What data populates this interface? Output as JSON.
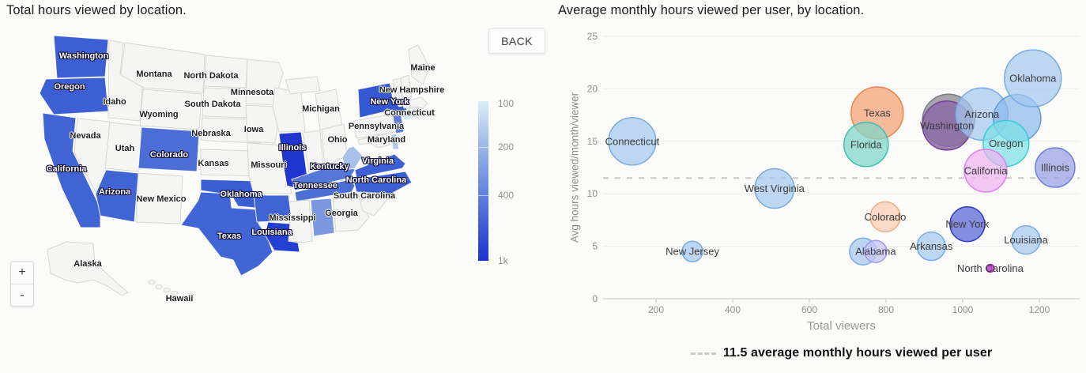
{
  "map_panel": {
    "title": "Total hours viewed by location.",
    "back_label": "BACK",
    "zoom_in_label": "+",
    "zoom_out_label": "-",
    "legend_ticks": [
      "100",
      "200",
      "400",
      "1k"
    ],
    "legend_gradient": [
      "#dbeef7",
      "#9ab5e9",
      "#5f80df",
      "#1c32cf"
    ]
  },
  "chart_panel": {
    "title": "Average monthly hours viewed per user, by location.",
    "y_axis_label": "Avg hours viewed/month/viewer",
    "x_axis_label": "Total viewers",
    "annotation_label": "11.5 average monthly hours viewed per user"
  },
  "chart_data": [
    {
      "type": "choropleth_map",
      "title": "Total hours viewed by location.",
      "legend": {
        "ticks": [
          "100",
          "200",
          "400",
          "1k"
        ],
        "orientation": "vertical",
        "scale_top_to_bottom": "light-to-dark"
      },
      "default_fill": "#f5f5f3",
      "highlight_dark": "#2036cf",
      "states": [
        {
          "name": "Washington",
          "fill": "#3c60d3",
          "labeled": true,
          "label_style": "light"
        },
        {
          "name": "Oregon",
          "fill": "#3c60d3",
          "labeled": true,
          "label_style": "light"
        },
        {
          "name": "California",
          "fill": "#4064d4",
          "labeled": true,
          "label_style": "light"
        },
        {
          "name": "Nevada",
          "fill": "#f5f5f3",
          "labeled": true,
          "label_style": "dark"
        },
        {
          "name": "Idaho",
          "fill": "#f5f5f3",
          "labeled": true,
          "label_style": "dark"
        },
        {
          "name": "Montana",
          "fill": "#f5f5f3",
          "labeled": true,
          "label_style": "dark"
        },
        {
          "name": "Wyoming",
          "fill": "#f5f5f3",
          "labeled": true,
          "label_style": "dark"
        },
        {
          "name": "Utah",
          "fill": "#f5f5f3",
          "labeled": true,
          "label_style": "dark"
        },
        {
          "name": "Arizona",
          "fill": "#4064d4",
          "labeled": true,
          "label_style": "light"
        },
        {
          "name": "Colorado",
          "fill": "#4b6ed6",
          "labeled": true,
          "label_style": "light"
        },
        {
          "name": "New Mexico",
          "fill": "#f5f5f3",
          "labeled": true,
          "label_style": "dark"
        },
        {
          "name": "North Dakota",
          "fill": "#f5f5f3",
          "labeled": true,
          "label_style": "dark"
        },
        {
          "name": "South Dakota",
          "fill": "#f5f5f3",
          "labeled": true,
          "label_style": "dark"
        },
        {
          "name": "Nebraska",
          "fill": "#f5f5f3",
          "labeled": true,
          "label_style": "dark"
        },
        {
          "name": "Kansas",
          "fill": "#f5f5f3",
          "labeled": true,
          "label_style": "dark"
        },
        {
          "name": "Oklahoma",
          "fill": "#3a5ed3",
          "labeled": true,
          "label_style": "light"
        },
        {
          "name": "Texas",
          "fill": "#4165d4",
          "labeled": true,
          "label_style": "light"
        },
        {
          "name": "Minnesota",
          "fill": "#f5f5f3",
          "labeled": true,
          "label_style": "dark"
        },
        {
          "name": "Iowa",
          "fill": "#f5f5f3",
          "labeled": true,
          "label_style": "dark"
        },
        {
          "name": "Missouri",
          "fill": "#f5f5f3",
          "labeled": true,
          "label_style": "dark"
        },
        {
          "name": "Wisconsin",
          "fill": "#f5f5f3",
          "labeled": false,
          "label_style": "dark"
        },
        {
          "name": "Michigan",
          "fill": "#f5f5f3",
          "labeled": true,
          "label_style": "dark"
        },
        {
          "name": "Illinois",
          "fill": "#2036cf",
          "labeled": true,
          "label_style": "light"
        },
        {
          "name": "Indiana",
          "fill": "#f5f5f3",
          "labeled": false,
          "label_style": "dark"
        },
        {
          "name": "Ohio",
          "fill": "#f5f5f3",
          "labeled": true,
          "label_style": "dark"
        },
        {
          "name": "Kentucky",
          "fill": "#5577d8",
          "labeled": true,
          "label_style": "light"
        },
        {
          "name": "Tennessee",
          "fill": "#4c6fd6",
          "labeled": true,
          "label_style": "light"
        },
        {
          "name": "Mississippi",
          "fill": "#f5f5f3",
          "labeled": true,
          "label_style": "dark"
        },
        {
          "name": "Alabama",
          "fill": "#7b97e0",
          "labeled": false,
          "label_style": "light"
        },
        {
          "name": "Georgia",
          "fill": "#f5f5f3",
          "labeled": true,
          "label_style": "dark"
        },
        {
          "name": "South Carolina",
          "fill": "#f5f5f3",
          "labeled": true,
          "label_style": "dark"
        },
        {
          "name": "North Carolina",
          "fill": "#3c5fd3",
          "labeled": true,
          "label_style": "light"
        },
        {
          "name": "Virginia",
          "fill": "#3c60d3",
          "labeled": true,
          "label_style": "light"
        },
        {
          "name": "West Virginia",
          "fill": "#a9c0ea",
          "labeled": false,
          "label_style": "dark"
        },
        {
          "name": "Maryland",
          "fill": "#f5f5f3",
          "labeled": true,
          "label_style": "dark"
        },
        {
          "name": "Delaware",
          "fill": "#b3c9ed",
          "labeled": false,
          "label_style": "dark"
        },
        {
          "name": "Pennsylvania",
          "fill": "#f5f5f3",
          "labeled": true,
          "label_style": "dark"
        },
        {
          "name": "New Jersey",
          "fill": "#5b7ad9",
          "labeled": false,
          "label_style": "light"
        },
        {
          "name": "New York",
          "fill": "#3358d2",
          "labeled": true,
          "label_style": "light"
        },
        {
          "name": "Connecticut",
          "fill": "#cfe8f6",
          "labeled": true,
          "label_style": "dark"
        },
        {
          "name": "Rhode Island",
          "fill": "#f5f5f3",
          "labeled": false,
          "label_style": "dark"
        },
        {
          "name": "Massachusetts",
          "fill": "#f5f5f3",
          "labeled": false,
          "label_style": "dark"
        },
        {
          "name": "Vermont",
          "fill": "#f5f5f3",
          "labeled": false,
          "label_style": "dark"
        },
        {
          "name": "New Hampshire",
          "fill": "#f5f5f3",
          "labeled": true,
          "label_style": "dark"
        },
        {
          "name": "Maine",
          "fill": "#f5f5f3",
          "labeled": true,
          "label_style": "dark"
        },
        {
          "name": "Arkansas",
          "fill": "#4064d4",
          "labeled": false,
          "label_style": "light"
        },
        {
          "name": "Louisiana",
          "fill": "#2440d1",
          "labeled": true,
          "label_style": "light"
        },
        {
          "name": "Alaska",
          "fill": "#f5f5f3",
          "labeled": true,
          "label_style": "dark"
        },
        {
          "name": "Hawaii",
          "fill": "#f5f5f3",
          "labeled": true,
          "label_style": "dark"
        }
      ]
    },
    {
      "type": "scatter",
      "title": "Average monthly hours viewed per user, by location.",
      "xlabel": "Total viewers",
      "ylabel": "Avg hours viewed/month/viewer",
      "xlim": [
        60,
        1310
      ],
      "ylim": [
        0,
        25
      ],
      "x_ticks": [
        200,
        400,
        600,
        800,
        1000,
        1200
      ],
      "y_ticks": [
        0,
        5,
        10,
        15,
        20,
        25
      ],
      "grid": "horizontal",
      "average_line": {
        "value": 11.5,
        "style": "dashed",
        "color": "#c8c8c6",
        "label": "11.5 average monthly hours viewed per user"
      },
      "points": [
        {
          "label": "Connecticut",
          "x": 138,
          "y": 15.0,
          "r": 30,
          "fill": "#a5c8ef",
          "stroke": "#74a9e0",
          "labeled": true
        },
        {
          "label": "West Virginia",
          "x": 509,
          "y": 10.5,
          "r": 25,
          "fill": "#a5c8ef",
          "stroke": "#74a9e0",
          "labeled": true
        },
        {
          "label": "New Jersey",
          "x": 295,
          "y": 4.5,
          "r": 13,
          "fill": "#a5c8ef",
          "stroke": "#74a9e0",
          "labeled": true
        },
        {
          "label": "",
          "x": 963,
          "y": 17.0,
          "r": 33,
          "fill": "#98979d",
          "stroke": "#77767e",
          "labeled": false,
          "opacity": 0.85
        },
        {
          "label": "Washington",
          "x": 959,
          "y": 16.5,
          "r": 31,
          "fill": "#8c6ba7",
          "stroke": "#733d96",
          "labeled": true,
          "opacity": 0.85
        },
        {
          "label": "Texas",
          "x": 777,
          "y": 17.7,
          "r": 33,
          "fill": "#f4a173",
          "stroke": "#ec8148",
          "labeled": true
        },
        {
          "label": "Florida",
          "x": 748,
          "y": 14.7,
          "r": 28,
          "fill": "#7ed5c9",
          "stroke": "#39bdae",
          "labeled": true
        },
        {
          "label": "Arizona",
          "x": 1050,
          "y": 17.6,
          "r": 33,
          "fill": "#a5c8ef",
          "stroke": "#74a9e0",
          "labeled": true
        },
        {
          "label": "",
          "x": 1142,
          "y": 17.2,
          "r": 30,
          "fill": "#8cb8ea",
          "stroke": "#5f97d8",
          "labeled": false
        },
        {
          "label": "Oklahoma",
          "x": 1183,
          "y": 21.0,
          "r": 36,
          "fill": "#a5c8ef",
          "stroke": "#74a9e0",
          "labeled": true
        },
        {
          "label": "Oregon",
          "x": 1113,
          "y": 14.8,
          "r": 29,
          "fill": "#7ce0e6",
          "stroke": "#37cbd6",
          "labeled": true
        },
        {
          "label": "California",
          "x": 1060,
          "y": 12.2,
          "r": 27,
          "fill": "#efb3f1",
          "stroke": "#d97ee4",
          "labeled": true
        },
        {
          "label": "Illinois",
          "x": 1241,
          "y": 12.5,
          "r": 25,
          "fill": "#97a0e5",
          "stroke": "#6b77d6",
          "labeled": true
        },
        {
          "label": "Colorado",
          "x": 798,
          "y": 7.8,
          "r": 19,
          "fill": "#f9ccb2",
          "stroke": "#f3a87d",
          "labeled": true
        },
        {
          "label": "New York",
          "x": 1012,
          "y": 7.1,
          "r": 22,
          "fill": "#6e79d8",
          "stroke": "#2c39bd",
          "labeled": true,
          "opacity": 0.85
        },
        {
          "label": "Arkansas",
          "x": 918,
          "y": 5.0,
          "r": 18,
          "fill": "#a5c8ef",
          "stroke": "#74a9e0",
          "labeled": true
        },
        {
          "label": "Louisiana",
          "x": 1165,
          "y": 5.6,
          "r": 18,
          "fill": "#a5c8ef",
          "stroke": "#74a9e0",
          "labeled": true
        },
        {
          "label": "Alabama",
          "x": 740,
          "y": 4.5,
          "r": 17,
          "fill": "#a5c8ef",
          "stroke": "#74a9e0",
          "labeled": true,
          "label_dx": 16
        },
        {
          "label": "",
          "x": 773,
          "y": 4.5,
          "r": 14,
          "fill": "#c5c0f2",
          "stroke": "#9d96ea",
          "labeled": false
        },
        {
          "label": "North Carolina",
          "x": 1072,
          "y": 2.9,
          "r": 5,
          "fill": "#c44ecd",
          "stroke": "#a324ad",
          "labeled": true,
          "opacity": 0.95
        }
      ]
    }
  ]
}
